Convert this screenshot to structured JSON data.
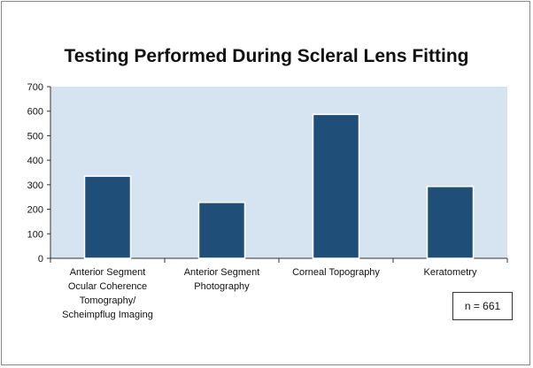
{
  "chart_data": {
    "type": "bar",
    "title": "Testing Performed During Scleral Lens Fitting",
    "categories": [
      [
        "Anterior Segment",
        "Ocular Coherence",
        "Tomography/",
        "Scheimpflug Imaging"
      ],
      [
        "Anterior Segment",
        "Photography"
      ],
      [
        "Corneal Topography"
      ],
      [
        "Keratometry"
      ]
    ],
    "values": [
      335,
      228,
      587,
      293
    ],
    "ylim": [
      0,
      700
    ],
    "yticks": [
      0,
      100,
      200,
      300,
      400,
      500,
      600,
      700
    ],
    "grid": false,
    "colors": {
      "bar": "#1f4e79",
      "plot_bg": "#d6e4f2"
    },
    "annotation": "n = 661"
  }
}
